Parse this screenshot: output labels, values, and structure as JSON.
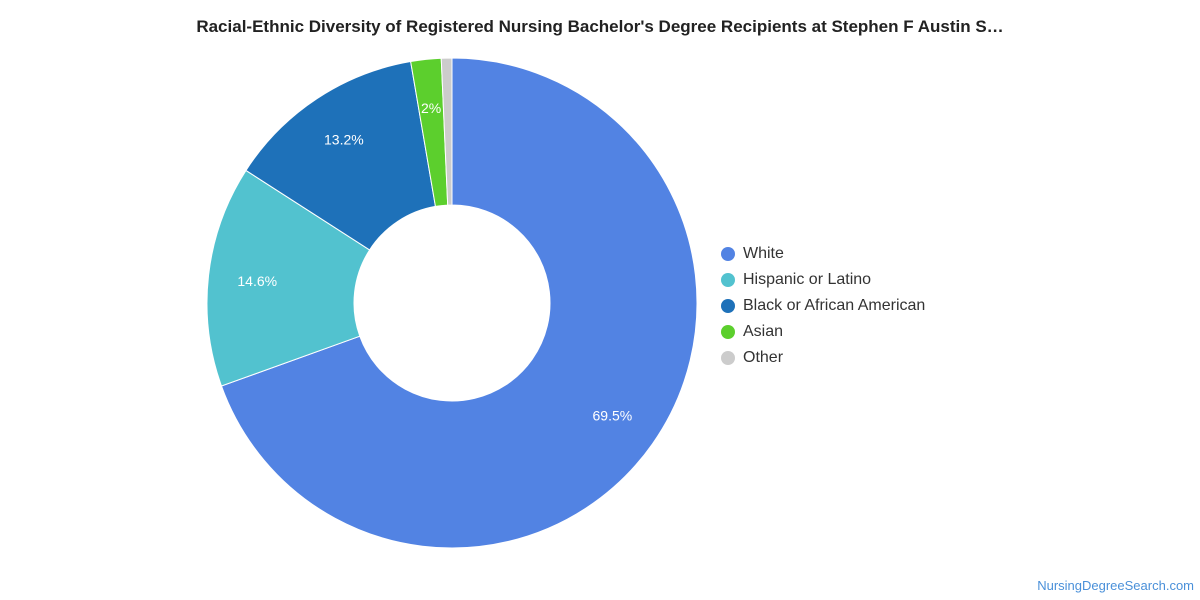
{
  "title": "Racial-Ethnic Diversity of Registered Nursing Bachelor's Degree Recipients at Stephen F Austin S…",
  "source_text": "NursingDegreeSearch.com",
  "chart_data": {
    "type": "pie",
    "donut": true,
    "title": "Racial-Ethnic Diversity of Registered Nursing Bachelor's Degree Recipients at Stephen F Austin S…",
    "legend_position": "right",
    "slices": [
      {
        "name": "White",
        "value": 69.5,
        "label": "69.5%",
        "color": "#5283e3"
      },
      {
        "name": "Hispanic or Latino",
        "value": 14.6,
        "label": "14.6%",
        "color": "#52c2cf"
      },
      {
        "name": "Black or African American",
        "value": 13.2,
        "label": "13.2%",
        "color": "#1e71b9"
      },
      {
        "name": "Asian",
        "value": 2.0,
        "label": "2%",
        "color": "#5ccf2d"
      },
      {
        "name": "Other",
        "value": 0.7,
        "label": "",
        "color": "#cccccc"
      }
    ]
  }
}
